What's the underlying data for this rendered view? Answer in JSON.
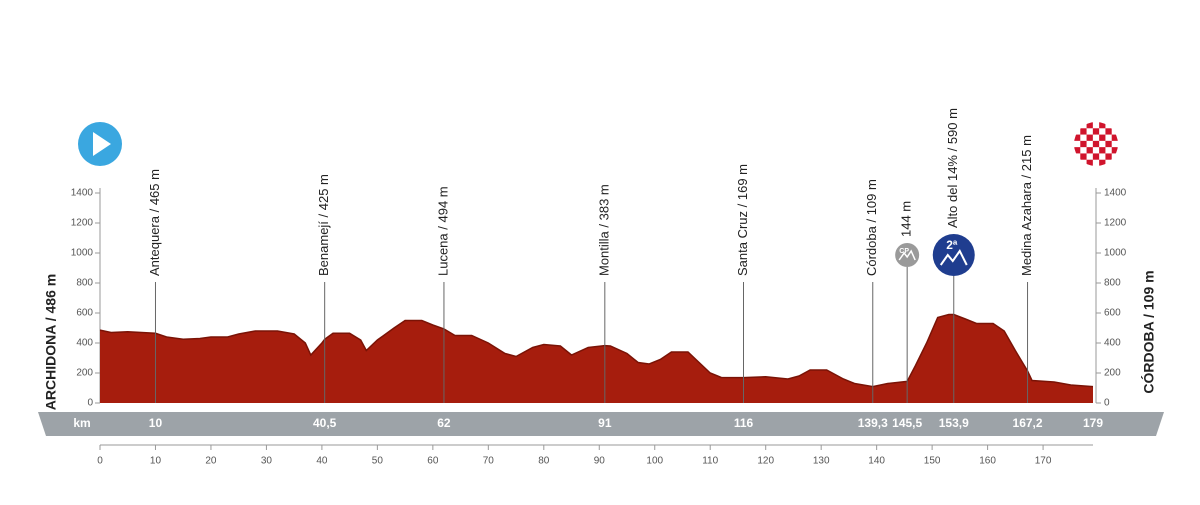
{
  "chart_data": {
    "type": "area",
    "start_label": "ARCHIDONA / 486 m",
    "finish_label": "CÓRDOBA / 109 m",
    "km_label": "km",
    "x": [
      0,
      2,
      5,
      10,
      12,
      15,
      18,
      20,
      23,
      25,
      28,
      32,
      35,
      37,
      38,
      40,
      40.5,
      42,
      45,
      47,
      48,
      50,
      53,
      55,
      58,
      60,
      62,
      64,
      67,
      70,
      73,
      75,
      78,
      80,
      83,
      85,
      88,
      91,
      92,
      95,
      97,
      99,
      101,
      103,
      106,
      108,
      110,
      112,
      116,
      120,
      124,
      126,
      128,
      131,
      134,
      136,
      139.3,
      142,
      145.5,
      147,
      149,
      151,
      153,
      153.9,
      156,
      158,
      161,
      163,
      165,
      167.2,
      168,
      172,
      175,
      179
    ],
    "series": [
      {
        "color": "#a61d0d",
        "values": [
          486,
          470,
          475,
          465,
          440,
          425,
          430,
          440,
          440,
          460,
          480,
          480,
          460,
          400,
          320,
          400,
          425,
          465,
          465,
          420,
          350,
          420,
          500,
          550,
          550,
          520,
          494,
          450,
          450,
          400,
          330,
          310,
          370,
          390,
          380,
          320,
          370,
          383,
          380,
          330,
          270,
          260,
          290,
          340,
          340,
          270,
          200,
          170,
          169,
          175,
          160,
          180,
          220,
          220,
          160,
          130,
          109,
          130,
          144,
          250,
          400,
          570,
          590,
          590,
          560,
          530,
          530,
          480,
          350,
          215,
          150,
          140,
          120,
          109
        ]
      }
    ],
    "xlim": [
      0,
      179
    ],
    "ylim": [
      0,
      1400
    ],
    "xticks": [
      0,
      10,
      20,
      30,
      40,
      50,
      60,
      70,
      80,
      90,
      100,
      110,
      120,
      130,
      140,
      150,
      160,
      170
    ],
    "yticks": [
      0,
      200,
      400,
      600,
      800,
      1000,
      1200,
      1400
    ],
    "waypoints": [
      {
        "km": 10,
        "label": "Antequera / 465 m"
      },
      {
        "km": {
          "value": 40.5,
          "label": "40,5"
        },
        "label": "Benamejí / 425 m"
      },
      {
        "km": 62,
        "label": "Lucena / 494 m"
      },
      {
        "km": 91,
        "label": "Montilla / 383 m"
      },
      {
        "km": 116,
        "label": "Santa Cruz / 169 m"
      },
      {
        "km": {
          "value": 139.3,
          "label": "139,3"
        },
        "label": "Córdoba / 109 m"
      },
      {
        "km": {
          "value": 145.5,
          "label": "145,5"
        },
        "label": "144 m",
        "icon": "CP"
      },
      {
        "km": {
          "value": 153.9,
          "label": "153,9"
        },
        "label": "Alto del 14% / 590 m",
        "icon": "2ª"
      },
      {
        "km": {
          "value": 167.2,
          "label": "167,2"
        },
        "label": "Medina Azahara / 215 m"
      },
      {
        "km": 179
      }
    ]
  }
}
